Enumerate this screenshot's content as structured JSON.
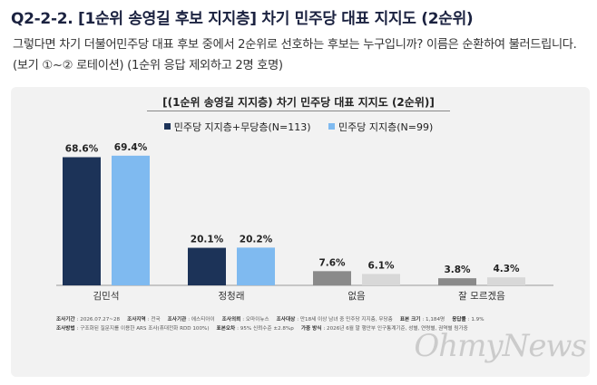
{
  "question": {
    "title": "Q2-2-2. [1순위 송영길 후보 지지층] 차기 민주당 대표 지지도 (2순위)",
    "body": "그렇다면 차기 더불어민주당 대표 후보 중에서 2순위로 선호하는 후보는 누구입니까? 이름은 순환하여 불러드립니다. (보기 ①~② 로테이션) (1순위 응답 제외하고 2명 호명)"
  },
  "chart_data": {
    "type": "bar",
    "title": "[(1순위 송영길 지지층) 차기 민주당 대표 지지도 (2순위)]",
    "categories": [
      "김민석",
      "정청래",
      "없음",
      "잘 모르겠음"
    ],
    "series": [
      {
        "name": "민주당 지지층+무당층(N=113)",
        "values": [
          68.6,
          20.1,
          7.6,
          3.8
        ],
        "labels": [
          "68.6%",
          "20.1%",
          "7.6%",
          "3.8%"
        ]
      },
      {
        "name": "민주당 지지층(N=99)",
        "values": [
          69.4,
          20.2,
          6.1,
          4.3
        ],
        "labels": [
          "69.4%",
          "20.2%",
          "6.1%",
          "4.3%"
        ]
      }
    ],
    "colors": {
      "series1": "#1c3358",
      "series2": "#7fbaf0",
      "series1_other": "#8a8a8a",
      "series2_other": "#d8d8d8"
    },
    "ylim": [
      0,
      80
    ],
    "grid": false,
    "legend": "top-center"
  },
  "footer": {
    "row1": [
      {
        "label": "조사기간",
        "value": "2026.07.27~28"
      },
      {
        "label": "조사지역",
        "value": "전국"
      },
      {
        "label": "조사기관",
        "value": "에스티아이"
      },
      {
        "label": "조사의뢰",
        "value": "오마이뉴스"
      },
      {
        "label": "조사대상",
        "value": "만18세 이상 남녀 중 민주당 지지층, 무당층"
      },
      {
        "label": "표본 크기",
        "value": "1,184명"
      },
      {
        "label": "응답률",
        "value": "1.9%"
      }
    ],
    "row2": [
      {
        "label": "조사방법",
        "value": "구조화된 질문지를 이용한 ARS 조사(휴대전화 RDD 100%)"
      },
      {
        "label": "표본오차",
        "value": "95% 신뢰수준 ±2.8%p"
      },
      {
        "label": "가중 방식",
        "value": "2026년 6월 말 행안부 인구통계기준, 성별, 연령별, 권역별 림가중"
      }
    ]
  },
  "watermark": "OhmyNews"
}
